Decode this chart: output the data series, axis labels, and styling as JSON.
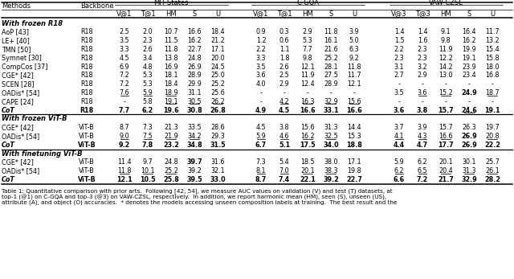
{
  "col_headers_top": [
    "MIT-States",
    "C-GQA",
    "VAW-CZSL"
  ],
  "col_headers_sub_mit": [
    "V@1",
    "T@1",
    "HM",
    "S",
    "U"
  ],
  "col_headers_sub_cgqa": [
    "V@1",
    "T@1",
    "HM",
    "S",
    "U"
  ],
  "col_headers_sub_vaw": [
    "V@3",
    "T@3",
    "HM",
    "S",
    "U"
  ],
  "caption_lines": [
    "Table 1: Quantitative comparison with prior arts.  Following [42, 54], we measure AUC values on validation (V) and test (T) datasets, at",
    "top-1 (@1) on C-GQA and top-3 (@3) on VAW-CZSL, respectively.  In addition, we report harmonic mean (HM), seen (S), unseen (US),",
    "attribute (A), and object (O) accuracies.  * denotes the models accessing unseen composition labels at training.  The best result and the"
  ],
  "row_groups": [
    {
      "header": "With frozen R18",
      "rows": [
        {
          "method": "AoP [43]",
          "bb": "R18",
          "mit": [
            2.5,
            2.0,
            10.7,
            16.6,
            18.4
          ],
          "cgqa": [
            0.9,
            0.3,
            2.9,
            11.8,
            3.9
          ],
          "vaw": [
            1.4,
            1.4,
            9.1,
            16.4,
            11.7
          ],
          "bold_row": false,
          "mit_bold": [],
          "mit_ul": [],
          "cgqa_bold": [],
          "cgqa_ul": [],
          "vaw_bold": [],
          "vaw_ul": []
        },
        {
          "method": "LE+ [40]",
          "bb": "R18",
          "mit": [
            3.5,
            2.3,
            11.5,
            16.2,
            21.2
          ],
          "cgqa": [
            1.2,
            0.6,
            5.3,
            16.1,
            5.0
          ],
          "vaw": [
            1.5,
            1.6,
            9.8,
            16.2,
            13.2
          ],
          "bold_row": false,
          "mit_bold": [],
          "mit_ul": [],
          "cgqa_bold": [],
          "cgqa_ul": [],
          "vaw_bold": [],
          "vaw_ul": []
        },
        {
          "method": "TMN [50]",
          "bb": "R18",
          "mit": [
            3.3,
            2.6,
            11.8,
            22.7,
            17.1
          ],
          "cgqa": [
            2.2,
            1.1,
            7.7,
            21.6,
            6.3
          ],
          "vaw": [
            2.2,
            2.3,
            11.9,
            19.9,
            15.4
          ],
          "bold_row": false,
          "mit_bold": [],
          "mit_ul": [],
          "cgqa_bold": [],
          "cgqa_ul": [],
          "vaw_bold": [],
          "vaw_ul": []
        },
        {
          "method": "Symnet [30]",
          "bb": "R18",
          "mit": [
            4.5,
            3.4,
            13.8,
            24.8,
            20.0
          ],
          "cgqa": [
            3.3,
            1.8,
            9.8,
            25.2,
            9.2
          ],
          "vaw": [
            2.3,
            2.3,
            12.2,
            19.1,
            15.8
          ],
          "bold_row": false,
          "mit_bold": [],
          "mit_ul": [],
          "cgqa_bold": [],
          "cgqa_ul": [],
          "vaw_bold": [],
          "vaw_ul": []
        },
        {
          "method": "CompCos [37]",
          "bb": "R18",
          "mit": [
            6.9,
            4.8,
            16.9,
            26.9,
            24.5
          ],
          "cgqa": [
            3.5,
            2.6,
            12.1,
            28.1,
            11.8
          ],
          "vaw": [
            3.1,
            3.2,
            14.2,
            23.9,
            18.0
          ],
          "bold_row": false,
          "mit_bold": [],
          "mit_ul": [],
          "cgqa_bold": [],
          "cgqa_ul": [],
          "vaw_bold": [],
          "vaw_ul": []
        },
        {
          "method": "CGE* [42]",
          "bb": "R18",
          "mit": [
            7.2,
            5.3,
            18.1,
            28.9,
            25.0
          ],
          "cgqa": [
            3.6,
            2.5,
            11.9,
            27.5,
            11.7
          ],
          "vaw": [
            2.7,
            2.9,
            13.0,
            23.4,
            16.8
          ],
          "bold_row": false,
          "mit_bold": [],
          "mit_ul": [],
          "cgqa_bold": [],
          "cgqa_ul": [],
          "vaw_bold": [],
          "vaw_ul": []
        },
        {
          "method": "SCEN [28]",
          "bb": "R18",
          "mit": [
            7.2,
            5.3,
            18.4,
            29.9,
            25.2
          ],
          "cgqa": [
            4.0,
            2.9,
            12.4,
            28.9,
            12.1
          ],
          "vaw": [
            null,
            null,
            null,
            null,
            null
          ],
          "bold_row": false,
          "mit_bold": [],
          "mit_ul": [],
          "cgqa_bold": [],
          "cgqa_ul": [],
          "vaw_bold": [],
          "vaw_ul": []
        },
        {
          "method": "OADis* [54]",
          "bb": "R18",
          "mit": [
            7.6,
            5.9,
            18.9,
            31.1,
            25.6
          ],
          "cgqa": [
            null,
            null,
            null,
            null,
            null
          ],
          "vaw": [
            3.5,
            3.6,
            15.2,
            24.9,
            18.7
          ],
          "bold_row": false,
          "mit_bold": [],
          "mit_ul": [
            0,
            1,
            2
          ],
          "cgqa_bold": [],
          "cgqa_ul": [],
          "vaw_bold": [
            3
          ],
          "vaw_ul": [
            1,
            2,
            4
          ]
        },
        {
          "method": "CAPE [24]",
          "bb": "R18",
          "mit": [
            null,
            5.8,
            19.1,
            30.5,
            26.2
          ],
          "cgqa": [
            null,
            4.2,
            16.3,
            32.9,
            15.6
          ],
          "vaw": [
            null,
            null,
            null,
            null,
            null
          ],
          "bold_row": false,
          "mit_bold": [],
          "mit_ul": [
            2,
            3,
            4
          ],
          "cgqa_bold": [],
          "cgqa_ul": [
            1,
            2,
            3,
            4
          ],
          "vaw_bold": [],
          "vaw_ul": []
        },
        {
          "method": "CoT",
          "bb": "R18",
          "mit": [
            7.7,
            6.2,
            19.6,
            30.8,
            26.8
          ],
          "cgqa": [
            4.9,
            4.5,
            16.6,
            33.1,
            16.6
          ],
          "vaw": [
            3.6,
            3.8,
            15.7,
            24.6,
            19.1
          ],
          "bold_row": true,
          "mit_bold": [],
          "mit_ul": [],
          "cgqa_bold": [],
          "cgqa_ul": [],
          "vaw_bold": [],
          "vaw_ul": [
            3
          ]
        }
      ]
    },
    {
      "header": "With frozen ViT-B",
      "rows": [
        {
          "method": "CGE* [42]",
          "bb": "ViT-B",
          "mit": [
            8.7,
            7.3,
            21.3,
            33.5,
            28.6
          ],
          "cgqa": [
            4.5,
            3.8,
            15.6,
            31.3,
            14.4
          ],
          "vaw": [
            3.7,
            3.9,
            15.7,
            26.3,
            19.7
          ],
          "bold_row": false,
          "mit_bold": [],
          "mit_ul": [],
          "cgqa_bold": [],
          "cgqa_ul": [],
          "vaw_bold": [],
          "vaw_ul": []
        },
        {
          "method": "OADis* [54]",
          "bb": "ViT-B",
          "mit": [
            9.0,
            7.5,
            21.9,
            34.2,
            29.3
          ],
          "cgqa": [
            5.9,
            4.6,
            16.2,
            32.5,
            15.3
          ],
          "vaw": [
            4.1,
            4.3,
            16.6,
            26.9,
            20.8
          ],
          "bold_row": false,
          "mit_bold": [],
          "mit_ul": [
            0,
            1,
            2,
            3
          ],
          "cgqa_bold": [],
          "cgqa_ul": [
            0,
            1,
            2,
            3
          ],
          "vaw_bold": [
            3
          ],
          "vaw_ul": [
            0,
            1,
            2,
            4
          ]
        },
        {
          "method": "CoT",
          "bb": "ViT-B",
          "mit": [
            9.2,
            7.8,
            23.2,
            34.8,
            31.5
          ],
          "cgqa": [
            6.7,
            5.1,
            17.5,
            34.0,
            18.8
          ],
          "vaw": [
            4.4,
            4.7,
            17.7,
            26.9,
            22.2
          ],
          "bold_row": true,
          "mit_bold": [],
          "mit_ul": [],
          "cgqa_bold": [],
          "cgqa_ul": [],
          "vaw_bold": [],
          "vaw_ul": []
        }
      ]
    },
    {
      "header": "With finetuning ViT-B",
      "rows": [
        {
          "method": "CGE* [42]",
          "bb": "ViT-B",
          "mit": [
            11.4,
            9.7,
            24.8,
            39.7,
            31.6
          ],
          "cgqa": [
            7.3,
            5.4,
            18.5,
            38.0,
            17.1
          ],
          "vaw": [
            5.9,
            6.2,
            20.1,
            30.1,
            25.7
          ],
          "bold_row": false,
          "mit_bold": [
            3
          ],
          "mit_ul": [],
          "cgqa_bold": [],
          "cgqa_ul": [],
          "vaw_bold": [],
          "vaw_ul": []
        },
        {
          "method": "OADis* [54]",
          "bb": "ViT-B",
          "mit": [
            11.8,
            10.1,
            25.2,
            39.2,
            32.1
          ],
          "cgqa": [
            8.1,
            7.0,
            20.1,
            38.3,
            19.8
          ],
          "vaw": [
            6.2,
            6.5,
            20.4,
            31.3,
            26.1
          ],
          "bold_row": false,
          "mit_bold": [],
          "mit_ul": [
            0,
            1,
            2
          ],
          "cgqa_bold": [],
          "cgqa_ul": [
            0,
            1,
            2,
            3
          ],
          "vaw_bold": [],
          "vaw_ul": [
            0,
            1,
            2,
            3,
            4
          ]
        },
        {
          "method": "CoT",
          "bb": "ViT-B",
          "mit": [
            12.1,
            10.5,
            25.8,
            39.5,
            33.0
          ],
          "cgqa": [
            8.7,
            7.4,
            22.1,
            39.2,
            22.7
          ],
          "vaw": [
            6.6,
            7.2,
            21.7,
            32.9,
            28.2
          ],
          "bold_row": true,
          "mit_bold": [],
          "mit_ul": [],
          "cgqa_bold": [],
          "cgqa_ul": [],
          "vaw_bold": [],
          "vaw_ul": []
        }
      ]
    }
  ]
}
